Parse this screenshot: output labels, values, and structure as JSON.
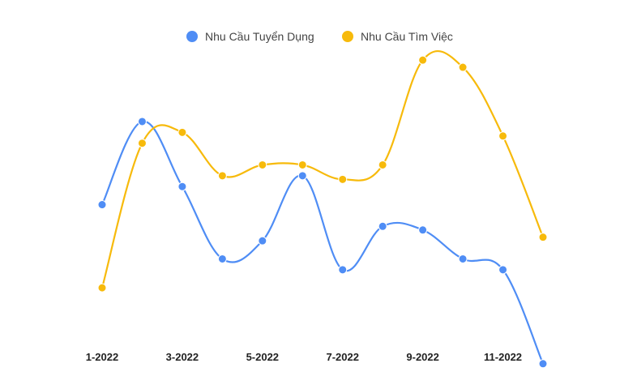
{
  "chart_data": {
    "type": "line",
    "title": "",
    "xlabel": "",
    "ylabel": "",
    "categories": [
      "1-2022",
      "2-2022",
      "3-2022",
      "4-2022",
      "5-2022",
      "6-2022",
      "7-2022",
      "8-2022",
      "9-2022",
      "10-2022",
      "11-2022",
      "12-2022"
    ],
    "tick_labels": [
      "1-2022",
      "3-2022",
      "5-2022",
      "7-2022",
      "9-2022",
      "11-2022"
    ],
    "ylim": [
      0,
      100
    ],
    "grid": false,
    "smooth": true,
    "legend_position": "top",
    "series": [
      {
        "name": "Nhu Cầu Tuyển Dụng",
        "color": "#4F8DF5",
        "values": [
          51,
          74,
          56,
          36,
          41,
          59,
          33,
          45,
          44,
          36,
          33,
          7
        ]
      },
      {
        "name": "Nhu Cầu Tìm Việc",
        "color": "#F7BA0B",
        "values": [
          28,
          68,
          71,
          59,
          62,
          62,
          58,
          62,
          91,
          89,
          70,
          42
        ]
      }
    ]
  }
}
